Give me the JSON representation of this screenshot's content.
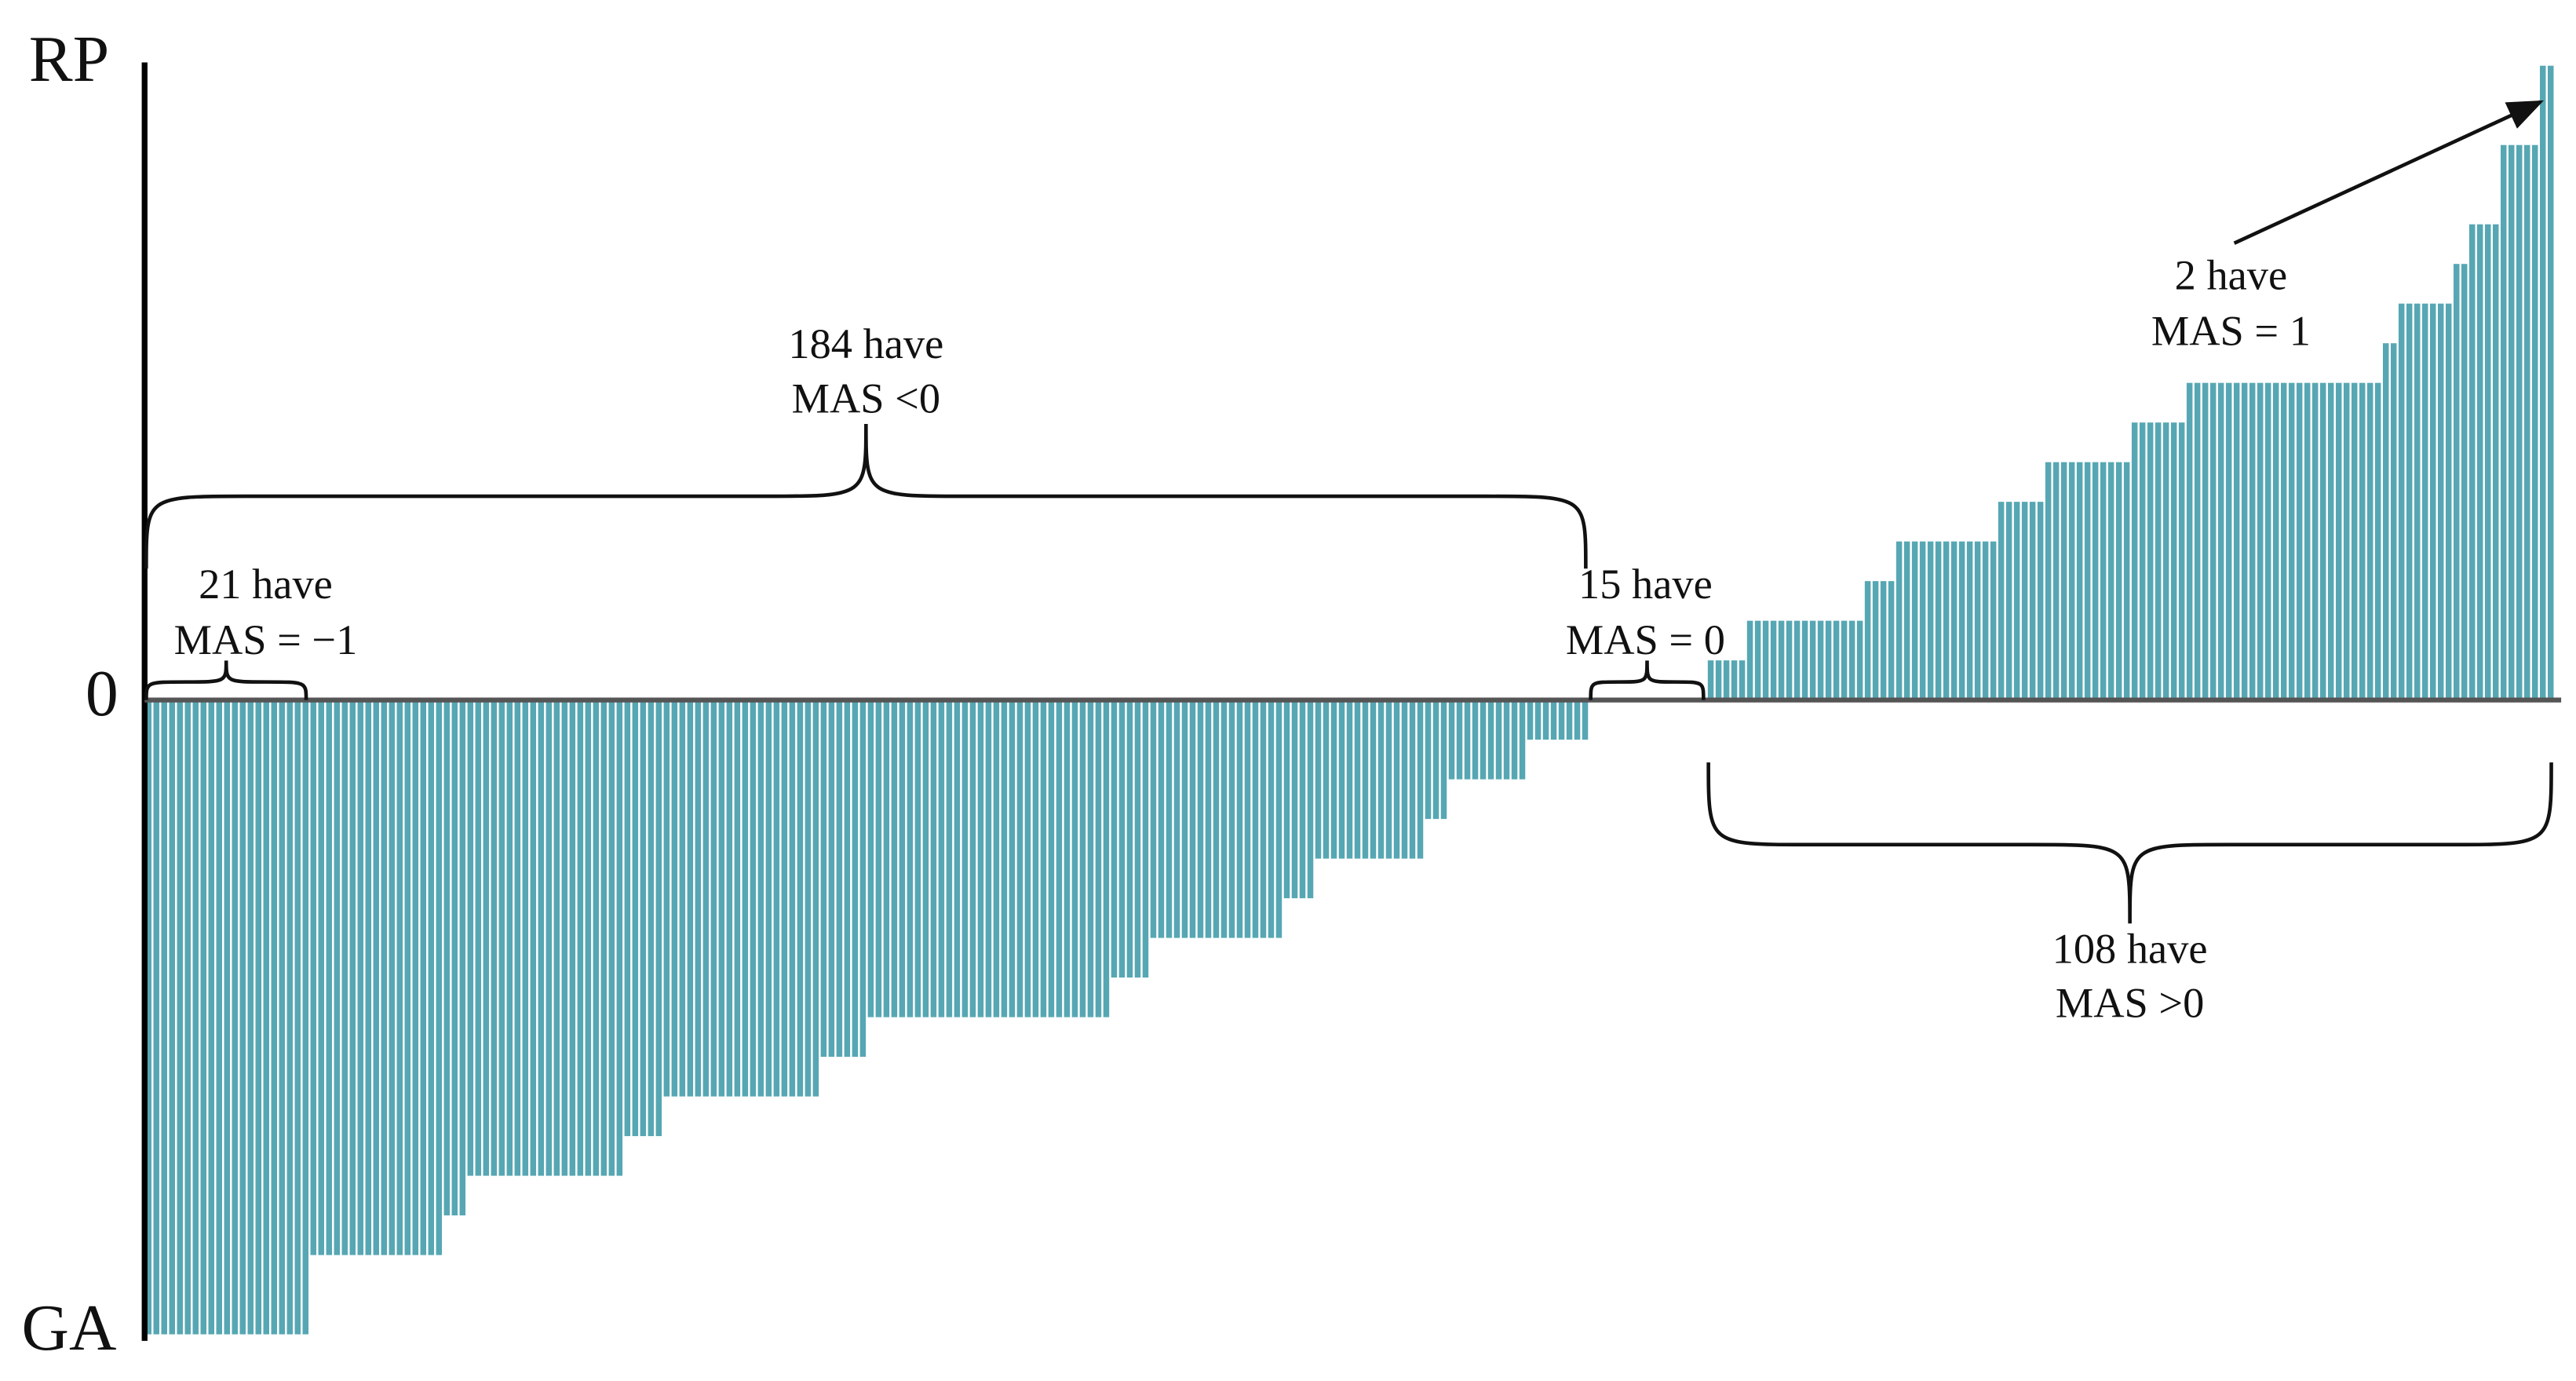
{
  "chart_data": {
    "type": "bar",
    "color": "#56a7b3",
    "ylim": [
      -1,
      1
    ],
    "yticks": [
      {
        "value": 1,
        "label": "RP"
      },
      0,
      {
        "value": -1,
        "label": "GA"
      }
    ],
    "annotations": [
      {
        "lines": [
          "184 have",
          "MAS <0"
        ]
      },
      {
        "lines": [
          "21 have",
          "MAS = −1"
        ]
      },
      {
        "lines": [
          "15 have",
          "MAS = 0"
        ]
      },
      {
        "lines": [
          "2 have",
          "MAS = 1"
        ]
      },
      {
        "lines": [
          "108 have",
          "MAS >0"
        ]
      }
    ],
    "values": [
      -1,
      -1,
      -1,
      -1,
      -1,
      -1,
      -1,
      -1,
      -1,
      -1,
      -1,
      -1,
      -1,
      -1,
      -1,
      -1,
      -1,
      -1,
      -1,
      -1,
      -1,
      -0.875,
      -0.875,
      -0.875,
      -0.875,
      -0.875,
      -0.875,
      -0.875,
      -0.875,
      -0.875,
      -0.875,
      -0.875,
      -0.875,
      -0.875,
      -0.875,
      -0.875,
      -0.875,
      -0.875,
      -0.8125,
      -0.8125,
      -0.8125,
      -0.75,
      -0.75,
      -0.75,
      -0.75,
      -0.75,
      -0.75,
      -0.75,
      -0.75,
      -0.75,
      -0.75,
      -0.75,
      -0.75,
      -0.75,
      -0.75,
      -0.75,
      -0.75,
      -0.75,
      -0.75,
      -0.75,
      -0.75,
      -0.6875,
      -0.6875,
      -0.6875,
      -0.6875,
      -0.6875,
      -0.625,
      -0.625,
      -0.625,
      -0.625,
      -0.625,
      -0.625,
      -0.625,
      -0.625,
      -0.625,
      -0.625,
      -0.625,
      -0.625,
      -0.625,
      -0.625,
      -0.625,
      -0.625,
      -0.625,
      -0.625,
      -0.625,
      -0.625,
      -0.5625,
      -0.5625,
      -0.5625,
      -0.5625,
      -0.5625,
      -0.5625,
      -0.5,
      -0.5,
      -0.5,
      -0.5,
      -0.5,
      -0.5,
      -0.5,
      -0.5,
      -0.5,
      -0.5,
      -0.5,
      -0.5,
      -0.5,
      -0.5,
      -0.5,
      -0.5,
      -0.5,
      -0.5,
      -0.5,
      -0.5,
      -0.5,
      -0.5,
      -0.5,
      -0.5,
      -0.5,
      -0.5,
      -0.5,
      -0.5,
      -0.5,
      -0.5,
      -0.5,
      -0.4375,
      -0.4375,
      -0.4375,
      -0.4375,
      -0.4375,
      -0.375,
      -0.375,
      -0.375,
      -0.375,
      -0.375,
      -0.375,
      -0.375,
      -0.375,
      -0.375,
      -0.375,
      -0.375,
      -0.375,
      -0.375,
      -0.375,
      -0.375,
      -0.375,
      -0.375,
      -0.3125,
      -0.3125,
      -0.3125,
      -0.3125,
      -0.25,
      -0.25,
      -0.25,
      -0.25,
      -0.25,
      -0.25,
      -0.25,
      -0.25,
      -0.25,
      -0.25,
      -0.25,
      -0.25,
      -0.25,
      -0.25,
      -0.1875,
      -0.1875,
      -0.1875,
      -0.125,
      -0.125,
      -0.125,
      -0.125,
      -0.125,
      -0.125,
      -0.125,
      -0.125,
      -0.125,
      -0.125,
      -0.0625,
      -0.0625,
      -0.0625,
      -0.0625,
      -0.0625,
      -0.0625,
      -0.0625,
      -0.0625,
      0,
      0,
      0,
      0,
      0,
      0,
      0,
      0,
      0,
      0,
      0,
      0,
      0,
      0,
      0,
      0.0625,
      0.0625,
      0.0625,
      0.0625,
      0.0625,
      0.125,
      0.125,
      0.125,
      0.125,
      0.125,
      0.125,
      0.125,
      0.125,
      0.125,
      0.125,
      0.125,
      0.125,
      0.125,
      0.125,
      0.125,
      0.1875,
      0.1875,
      0.1875,
      0.1875,
      0.25,
      0.25,
      0.25,
      0.25,
      0.25,
      0.25,
      0.25,
      0.25,
      0.25,
      0.25,
      0.25,
      0.25,
      0.25,
      0.3125,
      0.3125,
      0.3125,
      0.3125,
      0.3125,
      0.3125,
      0.375,
      0.375,
      0.375,
      0.375,
      0.375,
      0.375,
      0.375,
      0.375,
      0.375,
      0.375,
      0.375,
      0.4375,
      0.4375,
      0.4375,
      0.4375,
      0.4375,
      0.4375,
      0.4375,
      0.5,
      0.5,
      0.5,
      0.5,
      0.5,
      0.5,
      0.5,
      0.5,
      0.5,
      0.5,
      0.5,
      0.5,
      0.5,
      0.5,
      0.5,
      0.5,
      0.5,
      0.5,
      0.5,
      0.5,
      0.5,
      0.5,
      0.5,
      0.5,
      0.5,
      0.5625,
      0.5625,
      0.625,
      0.625,
      0.625,
      0.625,
      0.625,
      0.625,
      0.625,
      0.6875,
      0.6875,
      0.75,
      0.75,
      0.75,
      0.75,
      0.875,
      0.875,
      0.875,
      0.875,
      0.875,
      1,
      1
    ]
  }
}
